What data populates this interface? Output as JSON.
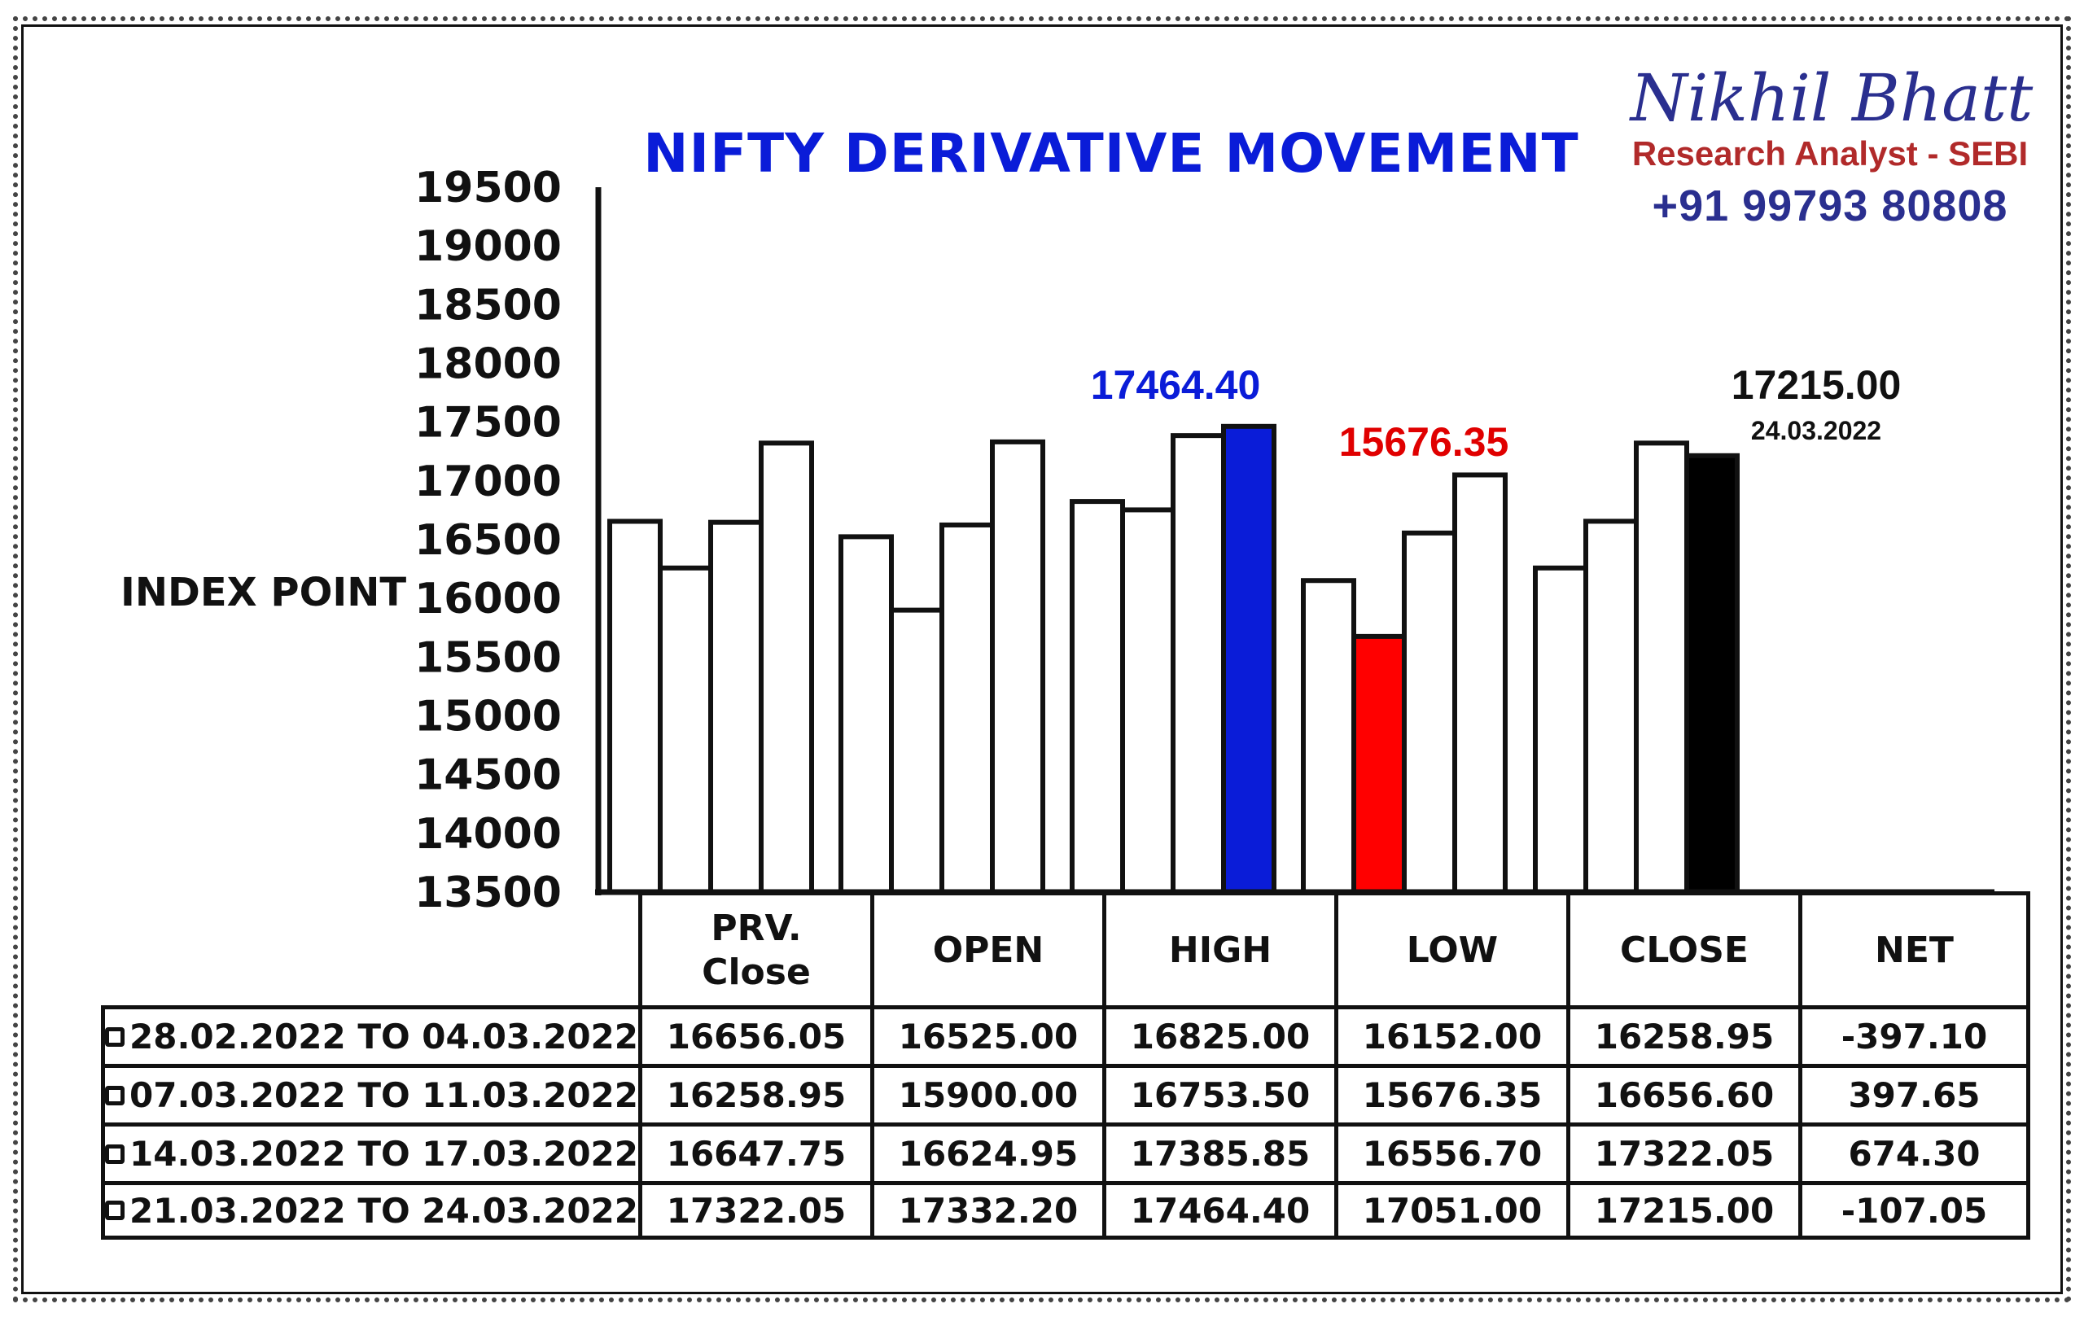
{
  "header": {
    "title": "NIFTY DERIVATIVE MOVEMENT",
    "brand_name": "Nikhil Bhatt",
    "brand_role": "Research Analyst - SEBI",
    "brand_phone": "+91 99793 80808"
  },
  "chart_data": {
    "type": "bar",
    "title": "NIFTY DERIVATIVE MOVEMENT",
    "ylabel": "INDEX POINT",
    "ylim": [
      13500,
      19500
    ],
    "yticks": [
      19500,
      19000,
      18500,
      18000,
      17500,
      17000,
      16500,
      16000,
      15500,
      15000,
      14500,
      14000,
      13500
    ],
    "categories": [
      "PRV. Close",
      "OPEN",
      "HIGH",
      "LOW",
      "CLOSE"
    ],
    "series": [
      {
        "name": "28.02.2022 TO 04.03.2022",
        "values": [
          16656.05,
          16525.0,
          16825.0,
          16152.0,
          16258.95
        ]
      },
      {
        "name": "07.03.2022 TO 11.03.2022",
        "values": [
          16258.95,
          15900.0,
          16753.5,
          15676.35,
          16656.6
        ]
      },
      {
        "name": "14.03.2022 TO 17.03.2022",
        "values": [
          16647.75,
          16624.95,
          17385.85,
          16556.7,
          17322.05
        ]
      },
      {
        "name": "21.03.2022 TO 24.03.2022",
        "values": [
          17322.05,
          17332.2,
          17464.4,
          17051.0,
          17215.0
        ]
      }
    ],
    "highlights": [
      {
        "category": "HIGH",
        "series_index": 3,
        "color": "#0a1cd8",
        "label": "17464.40",
        "label_color": "#0a1cd8"
      },
      {
        "category": "LOW",
        "series_index": 1,
        "color": "#ff0000",
        "label": "15676.35",
        "label_color": "#e00000"
      },
      {
        "category": "CLOSE",
        "series_index": 3,
        "color": "#000000",
        "label": "17215.00",
        "label_color": "#111111",
        "sublabel": "24.03.2022"
      }
    ],
    "bar_fill": "#ffffff",
    "bar_stroke": "#111111"
  },
  "table": {
    "headers": [
      [
        "PRV.",
        "Close"
      ],
      [
        "OPEN"
      ],
      [
        "HIGH"
      ],
      [
        "LOW"
      ],
      [
        "CLOSE"
      ],
      [
        "NET"
      ]
    ],
    "rows": [
      {
        "period": "28.02.2022 TO 04.03.2022",
        "values": [
          "16656.05",
          "16525.00",
          "16825.00",
          "16152.00",
          "16258.95",
          "-397.10"
        ]
      },
      {
        "period": "07.03.2022 TO 11.03.2022",
        "values": [
          "16258.95",
          "15900.00",
          "16753.50",
          "15676.35",
          "16656.60",
          "397.65"
        ]
      },
      {
        "period": "14.03.2022 TO 17.03.2022",
        "values": [
          "16647.75",
          "16624.95",
          "17385.85",
          "16556.70",
          "17322.05",
          "674.30"
        ]
      },
      {
        "period": "21.03.2022 TO 24.03.2022",
        "values": [
          "17322.05",
          "17332.20",
          "17464.40",
          "17051.00",
          "17215.00",
          "-107.05"
        ]
      }
    ]
  }
}
